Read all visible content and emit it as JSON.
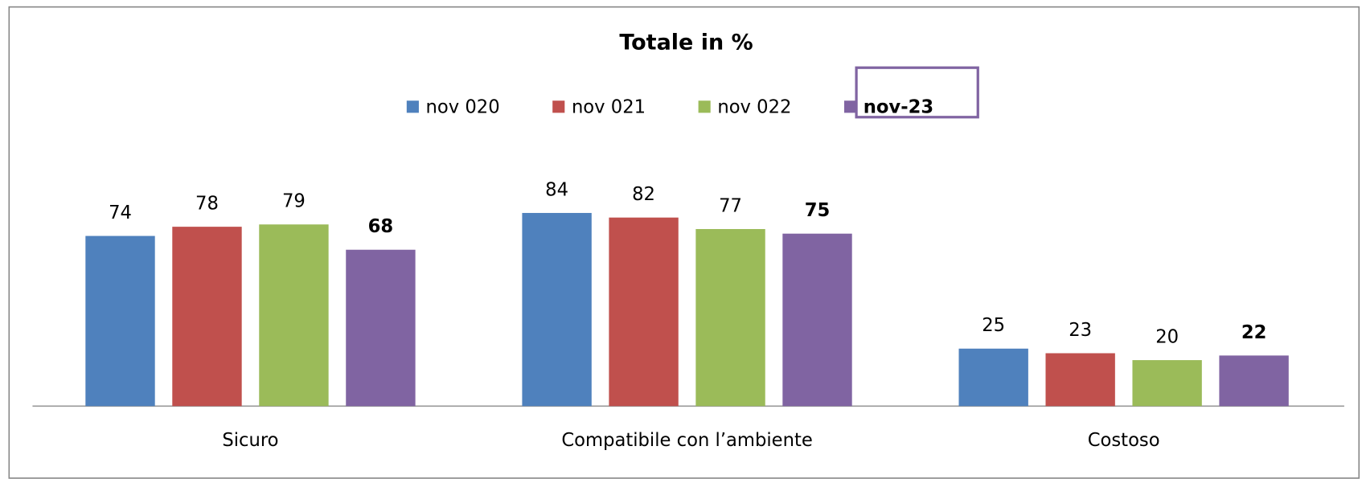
{
  "chart_data": {
    "type": "bar",
    "title": "Totale in %",
    "categories": [
      "Sicuro",
      "Compatibile con l’ambiente",
      "Costoso"
    ],
    "series": [
      {
        "name": "nov 020",
        "color": "#4f81bd",
        "values": [
          74,
          84,
          25
        ]
      },
      {
        "name": "nov 021",
        "color": "#c0504d",
        "values": [
          78,
          82,
          23
        ]
      },
      {
        "name": "nov 022",
        "color": "#9bbb59",
        "values": [
          79,
          77,
          20
        ]
      },
      {
        "name": "nov-23",
        "color": "#8064a2",
        "values": [
          68,
          75,
          22
        ]
      }
    ],
    "legend": "top"
  }
}
